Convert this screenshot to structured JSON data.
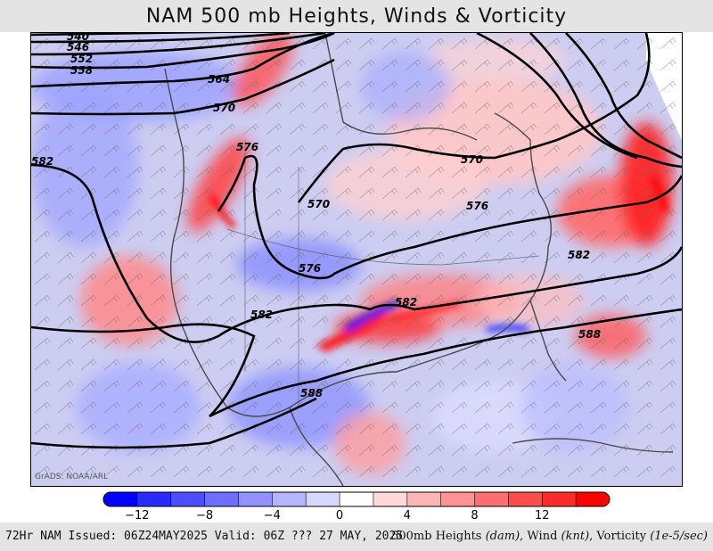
{
  "title": "NAM 500 mb Heights, Winds & Vorticity",
  "credit": "GrADS: NOAA/ARL",
  "footer": {
    "left": "72Hr NAM Issued: 06Z24MAY2025 Valid: 06Z ??? 27 MAY, 2025",
    "right_parts": [
      {
        "text": "500mb Heights ",
        "italic": false
      },
      {
        "text": "(dam)",
        "italic": true
      },
      {
        "text": ", Wind ",
        "italic": false
      },
      {
        "text": "(knt)",
        "italic": true
      },
      {
        "text": ", Vorticity ",
        "italic": false
      },
      {
        "text": "(1e-5/sec)",
        "italic": true
      }
    ]
  },
  "colorbar": {
    "colors": [
      "#0000ff",
      "#2a2aff",
      "#4d4dff",
      "#6f6fff",
      "#9292ff",
      "#b5b5ff",
      "#d8d8ff",
      "#ffffff",
      "#ffd8d8",
      "#ffb5b5",
      "#ff9292",
      "#ff6f6f",
      "#ff4d4d",
      "#ff2a2a",
      "#ff0000"
    ],
    "tick_labels": [
      "−12",
      "−8",
      "−4",
      "0",
      "4",
      "8",
      "12"
    ]
  },
  "contour_labels": [
    "540",
    "546",
    "552",
    "558",
    "564",
    "570",
    "576",
    "582",
    "570",
    "570",
    "576",
    "576",
    "582",
    "582",
    "582",
    "588",
    "588"
  ],
  "colors": {
    "background": "#c9c9ef",
    "positive": "#ff0000",
    "negative": "#0000ff",
    "coast": "#555555",
    "contour": "#000000"
  }
}
